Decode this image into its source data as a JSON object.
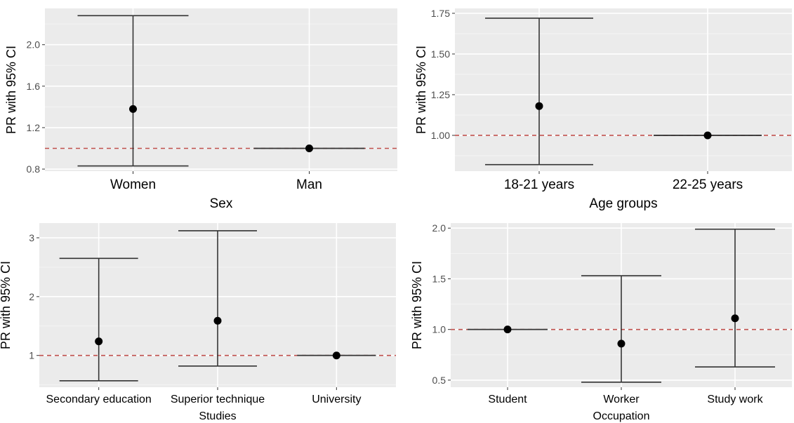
{
  "chart_data": [
    {
      "type": "errorbar",
      "xlabel": "Sex",
      "ylabel": "PR with 95% CI",
      "categories": [
        "Women",
        "Man"
      ],
      "estimates": [
        1.38,
        1.0
      ],
      "lower": [
        0.83,
        1.0
      ],
      "upper": [
        2.28,
        1.0
      ],
      "ylim": [
        0.78,
        2.35
      ],
      "yticks": [
        0.8,
        1.2,
        1.6,
        2.0
      ],
      "ytick_labels": [
        "0.8",
        "1.2",
        "1.6",
        "2.0"
      ],
      "reference_line": 1.0,
      "grid": true
    },
    {
      "type": "errorbar",
      "xlabel": "Age groups",
      "ylabel": "PR with 95% CI",
      "categories": [
        "18-21 years",
        "22-25 years"
      ],
      "estimates": [
        1.18,
        1.0
      ],
      "lower": [
        0.82,
        1.0
      ],
      "upper": [
        1.72,
        1.0
      ],
      "ylim": [
        0.78,
        1.78
      ],
      "yticks": [
        1.0,
        1.25,
        1.5,
        1.75
      ],
      "ytick_labels": [
        "1.00",
        "1.25",
        "1.50",
        "1.75"
      ],
      "reference_line": 1.0,
      "grid": true
    },
    {
      "type": "errorbar",
      "xlabel": "Studies",
      "ylabel": "PR with 95% CI",
      "categories": [
        "Secondary education",
        "Superior technique",
        "University"
      ],
      "estimates": [
        1.24,
        1.59,
        1.0
      ],
      "lower": [
        0.57,
        0.82,
        1.0
      ],
      "upper": [
        2.65,
        3.12,
        1.0
      ],
      "ylim": [
        0.46,
        3.25
      ],
      "yticks": [
        1,
        2,
        3
      ],
      "ytick_labels": [
        "1",
        "2",
        "3"
      ],
      "reference_line": 1.0,
      "grid": true
    },
    {
      "type": "errorbar",
      "xlabel": "Occupation",
      "ylabel": "PR with 95% CI",
      "categories": [
        "Student",
        "Worker",
        "Study work"
      ],
      "estimates": [
        1.0,
        0.86,
        1.11
      ],
      "lower": [
        1.0,
        0.48,
        0.63
      ],
      "upper": [
        1.0,
        1.53,
        1.99
      ],
      "ylim": [
        0.43,
        2.05
      ],
      "yticks": [
        0.5,
        1.0,
        1.5,
        2.0
      ],
      "ytick_labels": [
        "0.5",
        "1.0",
        "1.5",
        "2.0"
      ],
      "reference_line": 1.0,
      "grid": true
    }
  ],
  "colors": {
    "panel_background": "#ebebeb",
    "grid_major": "#ffffff",
    "grid_minor": "#f4f4f4",
    "error_bar": "#333333",
    "point": "#000000",
    "reference_line": "#c0504d",
    "tick_label": "#4d4d4d",
    "axis_title": "#000000"
  }
}
